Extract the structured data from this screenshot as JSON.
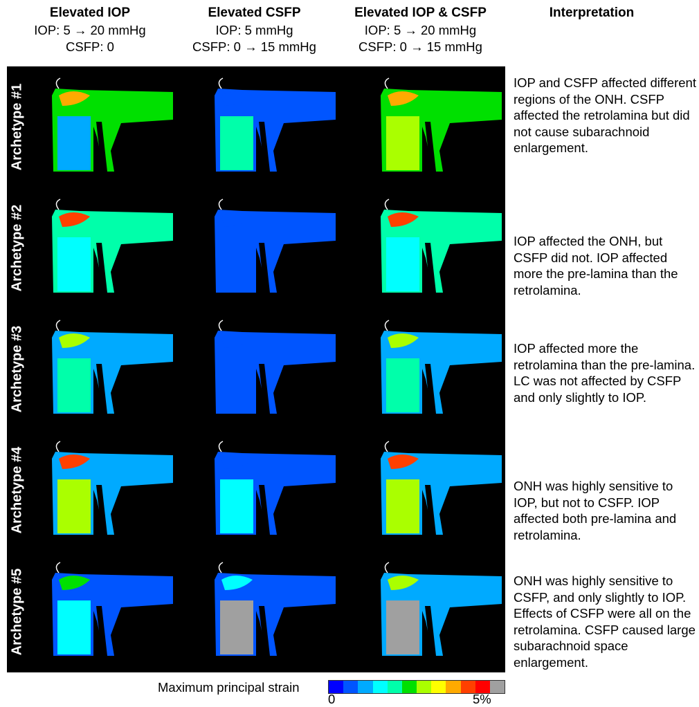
{
  "columns": [
    {
      "title": "Elevated IOP",
      "line1": "IOP: 5 → 20 mmHg",
      "line2": "CSFP: 0"
    },
    {
      "title": "Elevated CSFP",
      "line1": "IOP: 5 mmHg",
      "line2": "CSFP: 0 → 15 mmHg"
    },
    {
      "title": "Elevated IOP & CSFP",
      "line1": "IOP: 5 → 20 mmHg",
      "line2": "CSFP: 0 → 15 mmHg"
    },
    {
      "title": "Interpretation"
    }
  ],
  "rows": [
    {
      "label": "Archetype #1",
      "interpretation": "IOP and CSFP affected different regions of the ONH. CSFP affected the retrolamina but did not cause subarachnoid enlargement.",
      "levels": {
        "iop": [
          0.45,
          0.75,
          0.15
        ],
        "csfp": [
          0.1,
          0.05,
          0.38
        ],
        "both": [
          0.45,
          0.7,
          0.5
        ]
      }
    },
    {
      "label": "Archetype #2",
      "interpretation": "IOP affected the ONH, but CSFP did not. IOP affected more the pre-lamina than the retrolamina.",
      "levels": {
        "iop": [
          0.4,
          0.8,
          0.25
        ],
        "csfp": [
          0.05,
          0.05,
          0.08
        ],
        "both": [
          0.4,
          0.8,
          0.25
        ]
      }
    },
    {
      "label": "Archetype #3",
      "interpretation": "IOP affected more the retrolamina than the pre-lamina. LC was not affected by CSFP and only slightly to IOP.",
      "levels": {
        "iop": [
          0.15,
          0.55,
          0.35
        ],
        "csfp": [
          0.05,
          0.05,
          0.08
        ],
        "both": [
          0.15,
          0.55,
          0.35
        ]
      }
    },
    {
      "label": "Archetype #4",
      "interpretation": "ONH was highly sensitive to IOP, but not to CSFP. IOP affected both pre-lamina and retrolamina.",
      "levels": {
        "iop": [
          0.2,
          0.85,
          0.55
        ],
        "csfp": [
          0.1,
          0.1,
          0.25
        ],
        "both": [
          0.2,
          0.85,
          0.55
        ]
      }
    },
    {
      "label": "Archetype #5",
      "interpretation": "ONH was highly sensitive to CSFP, and only slightly to IOP. Effects of CSFP were all on the retrolamina. CSFP caused large subarachnoid space enlargement.",
      "levels": {
        "iop": [
          0.1,
          0.45,
          0.3
        ],
        "csfp": [
          0.1,
          0.25,
          1.0
        ],
        "both": [
          0.15,
          0.5,
          1.0
        ]
      }
    }
  ],
  "colorbar": {
    "label": "Maximum principal strain",
    "min_label": "0",
    "max_label": "5%",
    "colors": [
      "#0000ff",
      "#0055ff",
      "#00aaff",
      "#00ffff",
      "#00ffaa",
      "#00e000",
      "#aaff00",
      "#ffff00",
      "#ffaa00",
      "#ff4000",
      "#ff0000",
      "#a0a0a0"
    ]
  }
}
